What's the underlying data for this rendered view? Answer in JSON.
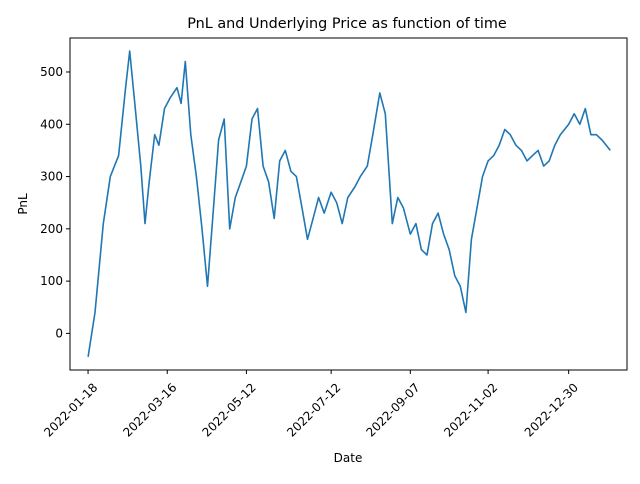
{
  "chart_data": {
    "type": "line",
    "title": "PnL and Underlying Price as function of time",
    "xlabel": "Date",
    "ylabel": "PnL",
    "grid": false,
    "legend": "none",
    "x_ticks": [
      "2022-01-18",
      "2022-03-16",
      "2022-05-12",
      "2022-07-12",
      "2022-09-07",
      "2022-11-02",
      "2022-12-30"
    ],
    "x_range": [
      "2022-01-05",
      "2023-02-10"
    ],
    "y_ticks": [
      0,
      100,
      200,
      300,
      400,
      500
    ],
    "ylim": [
      -70,
      565
    ],
    "line_color": "#1f77b4",
    "series": [
      {
        "x": [
          "2022-01-18",
          "2022-01-23",
          "2022-01-29",
          "2022-02-03",
          "2022-02-09",
          "2022-02-14",
          "2022-02-17",
          "2022-02-21",
          "2022-02-25",
          "2022-02-28",
          "2022-03-03",
          "2022-03-07",
          "2022-03-10",
          "2022-03-14",
          "2022-03-18",
          "2022-03-23",
          "2022-03-26",
          "2022-03-29",
          "2022-04-02",
          "2022-04-06",
          "2022-04-10",
          "2022-04-14",
          "2022-04-18",
          "2022-04-22",
          "2022-04-26",
          "2022-04-30",
          "2022-05-04",
          "2022-05-08",
          "2022-05-12",
          "2022-05-16",
          "2022-05-20",
          "2022-05-24",
          "2022-05-28",
          "2022-06-01",
          "2022-06-05",
          "2022-06-09",
          "2022-06-13",
          "2022-06-17",
          "2022-06-21",
          "2022-06-25",
          "2022-06-29",
          "2022-07-03",
          "2022-07-07",
          "2022-07-12",
          "2022-07-16",
          "2022-07-20",
          "2022-07-24",
          "2022-07-29",
          "2022-08-02",
          "2022-08-07",
          "2022-08-11",
          "2022-08-16",
          "2022-08-20",
          "2022-08-25",
          "2022-08-29",
          "2022-09-02",
          "2022-09-07",
          "2022-09-11",
          "2022-09-15",
          "2022-09-19",
          "2022-09-23",
          "2022-09-27",
          "2022-10-01",
          "2022-10-05",
          "2022-10-09",
          "2022-10-13",
          "2022-10-17",
          "2022-10-21",
          "2022-10-25",
          "2022-10-29",
          "2022-11-02",
          "2022-11-06",
          "2022-11-10",
          "2022-11-14",
          "2022-11-18",
          "2022-11-22",
          "2022-11-26",
          "2022-11-30",
          "2022-12-04",
          "2022-12-08",
          "2022-12-12",
          "2022-12-16",
          "2022-12-20",
          "2022-12-24",
          "2022-12-30",
          "2023-01-03",
          "2023-01-07",
          "2023-01-11",
          "2023-01-15",
          "2023-01-19",
          "2023-01-23",
          "2023-01-26",
          "2023-01-29"
        ],
        "y": [
          -45,
          40,
          210,
          300,
          340,
          470,
          540,
          430,
          320,
          210,
          290,
          380,
          360,
          430,
          450,
          470,
          440,
          520,
          380,
          300,
          200,
          90,
          230,
          370,
          410,
          200,
          260,
          290,
          320,
          410,
          430,
          320,
          290,
          220,
          330,
          350,
          310,
          300,
          240,
          180,
          220,
          260,
          230,
          270,
          250,
          210,
          260,
          280,
          300,
          320,
          380,
          460,
          420,
          210,
          260,
          240,
          190,
          210,
          160,
          150,
          210,
          230,
          190,
          160,
          110,
          90,
          40,
          180,
          240,
          300,
          330,
          340,
          360,
          390,
          380,
          360,
          350,
          330,
          340,
          350,
          320,
          330,
          360,
          380,
          400,
          420,
          400,
          430,
          380,
          380,
          370,
          360,
          350
        ]
      }
    ]
  }
}
